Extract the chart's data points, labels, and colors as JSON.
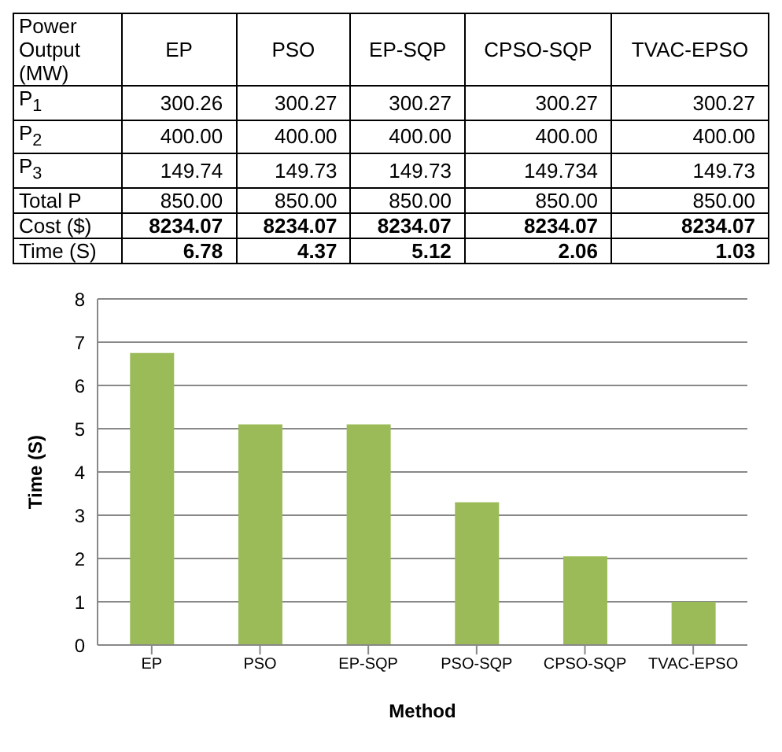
{
  "chart_data": [
    {
      "type": "other",
      "categories": [
        "Power Output (MW)",
        "EP",
        "PSO",
        "EP-SQP",
        "CPSO-SQP",
        "TVAC-EPSO"
      ],
      "y_categories": [
        "P$_{1}$",
        "P$_{2}$",
        "P$_{3}$",
        "Total P",
        "Cost ($)",
        "Time (S)"
      ],
      "cell_labels": [
        [
          "300.26",
          "300.27",
          "300.27",
          "300.27",
          "300.27"
        ],
        [
          "400.00",
          "400.00",
          "400.00",
          "400.00",
          "400.00"
        ],
        [
          "149.74",
          "149.73",
          "149.73",
          "149.734",
          "149.73"
        ],
        [
          "850.00",
          "850.00",
          "850.00",
          "850.00",
          "850.00"
        ],
        [
          "8234.07",
          "8234.07",
          "8234.07",
          "8234.07",
          "8234.07"
        ],
        [
          "6.78",
          "4.37",
          "5.12",
          "2.06",
          "1.03"
        ]
      ]
    },
    {
      "type": "bar",
      "xlabel": "Method",
      "ylabel": "Time (S)",
      "categories": [
        "EP",
        "PSO",
        "EP-SQP",
        "PSO-SQP",
        "CPSO-SQP",
        "TVAC-EPSO"
      ],
      "values": [
        6.75,
        5.1,
        5.1,
        3.3,
        2.05,
        1.0
      ],
      "color": "#9bbb59",
      "ylim": [
        0,
        8
      ],
      "yticks": [
        0,
        1,
        2,
        3,
        4,
        5,
        6,
        7,
        8
      ],
      "grid": "y"
    }
  ]
}
